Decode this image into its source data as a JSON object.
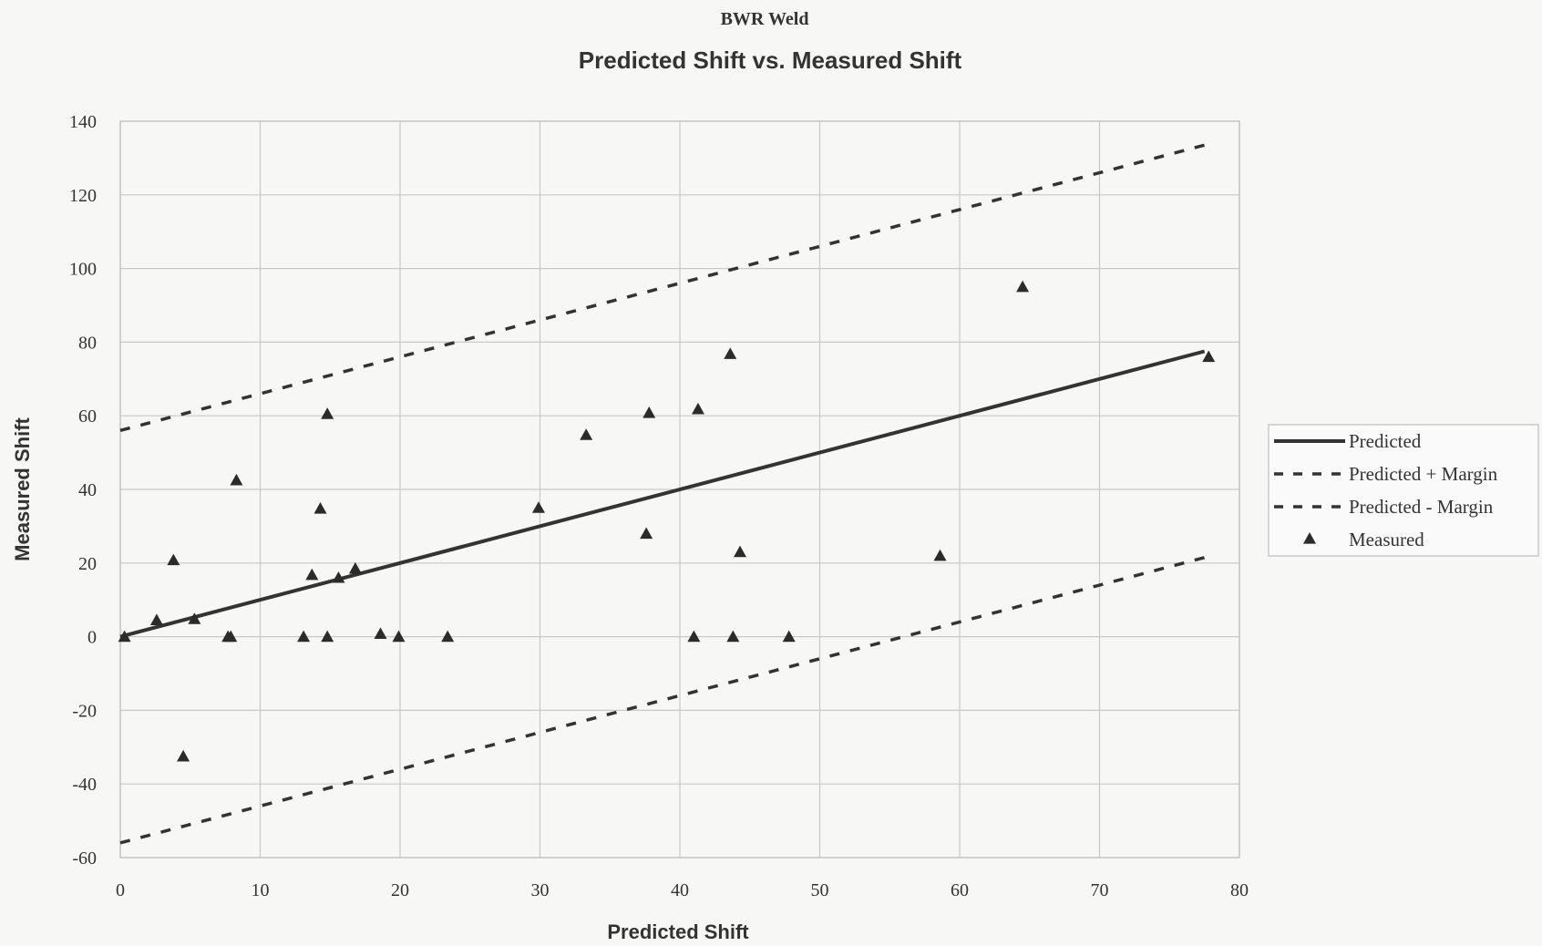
{
  "chart_data": {
    "type": "scatter",
    "supertitle": "BWR Weld",
    "title": "Predicted Shift vs. Measured Shift",
    "xlabel": "Predicted Shift",
    "ylabel": "Measured Shift",
    "xlim": [
      0,
      80
    ],
    "ylim": [
      -60,
      140
    ],
    "xticks": [
      0,
      10,
      20,
      30,
      40,
      50,
      60,
      70,
      80
    ],
    "yticks": [
      -60,
      -40,
      -20,
      0,
      20,
      40,
      60,
      80,
      100,
      120,
      140
    ],
    "grid": true,
    "legend_position": "right",
    "series": [
      {
        "name": "Predicted",
        "style": "solid-line",
        "color": "#333333",
        "points": [
          [
            0,
            0
          ],
          [
            77.5,
            77.5
          ]
        ]
      },
      {
        "name": "Predicted +  Margin",
        "style": "dashed-line",
        "color": "#333333",
        "points": [
          [
            0,
            56
          ],
          [
            77.5,
            133.5
          ]
        ]
      },
      {
        "name": "Predicted - Margin",
        "style": "dashed-line",
        "color": "#333333",
        "points": [
          [
            0,
            -56
          ],
          [
            77.5,
            21.5
          ]
        ]
      },
      {
        "name": "Measured",
        "style": "triangle-marker",
        "color": "#333333",
        "points": [
          [
            0.3,
            0
          ],
          [
            2.6,
            4.5
          ],
          [
            3.8,
            20.8
          ],
          [
            4.5,
            -32.5
          ],
          [
            5.3,
            4.8
          ],
          [
            7.7,
            0
          ],
          [
            7.9,
            0
          ],
          [
            8.3,
            42.5
          ],
          [
            13.1,
            0
          ],
          [
            13.7,
            16.8
          ],
          [
            14.3,
            34.8
          ],
          [
            14.8,
            60.5
          ],
          [
            14.8,
            0
          ],
          [
            15.6,
            16
          ],
          [
            16.8,
            18.5
          ],
          [
            18.6,
            0.8
          ],
          [
            19.9,
            0
          ],
          [
            23.4,
            0
          ],
          [
            29.9,
            35
          ],
          [
            33.3,
            54.8
          ],
          [
            37.6,
            28
          ],
          [
            37.8,
            60.8
          ],
          [
            41.0,
            0
          ],
          [
            41.3,
            61.8
          ],
          [
            43.6,
            76.8
          ],
          [
            43.8,
            0
          ],
          [
            44.3,
            23
          ],
          [
            47.8,
            0
          ],
          [
            58.6,
            22
          ],
          [
            64.5,
            95
          ],
          [
            77.8,
            76
          ]
        ]
      }
    ]
  }
}
